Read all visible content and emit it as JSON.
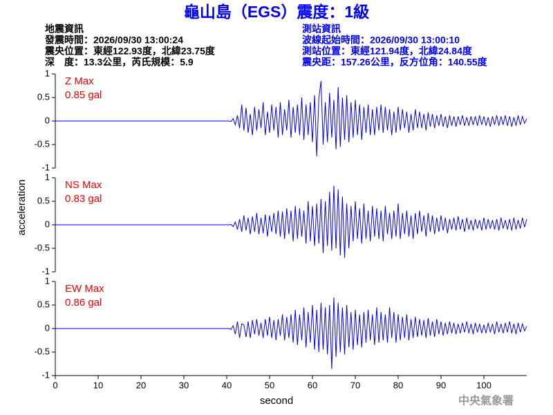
{
  "title": "龜山島（EGS）震度：1級",
  "event_info": {
    "heading": "地震資訊",
    "lines": [
      "發震時間：2026/09/30 13:00:24",
      "震央位置：東經122.93度，北緯23.75度",
      "深　度：13.3公里，芮氏規模：5.9"
    ]
  },
  "station_info": {
    "heading": "測站資訊",
    "lines": [
      "波線起始時間：2026/09/30 13:00:10",
      "測站位置：東經121.94度，北緯24.84度",
      "震央距：157.26公里，反方位角：140.55度"
    ]
  },
  "footer": "中央氣象署",
  "chart_data": {
    "type": "line",
    "xlabel": "second",
    "ylabel": "acceleration",
    "xlim": [
      0,
      110
    ],
    "xticks": [
      0,
      10,
      20,
      30,
      40,
      50,
      60,
      70,
      80,
      90,
      100
    ],
    "ylim": [
      -1,
      1
    ],
    "yticks": [
      -1,
      -0.5,
      0,
      0.5,
      1
    ],
    "annotation_color": "#ee0000",
    "x": [
      0,
      40,
      40.5,
      41,
      41.5,
      42,
      42.5,
      43,
      43.5,
      44,
      44.5,
      45,
      45.5,
      46,
      46.5,
      47,
      47.5,
      48,
      48.5,
      49,
      49.5,
      50,
      50.5,
      51,
      51.5,
      52,
      52.5,
      53,
      53.5,
      54,
      54.5,
      55,
      55.5,
      56,
      56.5,
      57,
      57.5,
      58,
      58.5,
      59,
      59.5,
      60,
      60.5,
      61,
      61.5,
      62,
      62.5,
      63,
      63.5,
      64,
      64.5,
      65,
      65.5,
      66,
      66.5,
      67,
      67.5,
      68,
      68.5,
      69,
      69.5,
      70,
      70.5,
      71,
      71.5,
      72,
      72.5,
      73,
      73.5,
      74,
      74.5,
      75,
      75.5,
      76,
      76.5,
      77,
      77.5,
      78,
      78.5,
      79,
      79.5,
      80,
      80.5,
      81,
      81.5,
      82,
      82.5,
      83,
      83.5,
      84,
      84.5,
      85,
      85.5,
      86,
      86.5,
      87,
      87.5,
      88,
      88.5,
      89,
      89.5,
      90,
      90.5,
      91,
      91.5,
      92,
      92.5,
      93,
      93.5,
      94,
      94.5,
      95,
      95.5,
      96,
      96.5,
      97,
      97.5,
      98,
      98.5,
      99,
      99.5,
      100,
      100.5,
      101,
      101.5,
      102,
      102.5,
      103,
      103.5,
      104,
      104.5,
      105,
      105.5,
      106,
      106.5,
      107,
      107.5,
      108,
      108.5,
      109,
      109.5,
      110
    ],
    "series": [
      {
        "name": "Z Max",
        "peak_label": "0.85 gal",
        "color": "#0000ee",
        "values": [
          0,
          0,
          0,
          -0.01,
          0.05,
          -0.08,
          0.12,
          -0.15,
          0.35,
          -0.2,
          0.28,
          -0.25,
          0.15,
          -0.3,
          0.3,
          -0.2,
          0.25,
          -0.15,
          0.4,
          -0.3,
          0.2,
          -0.25,
          0.35,
          -0.2,
          0.3,
          -0.35,
          0.4,
          -0.3,
          0.25,
          -0.2,
          0.45,
          -0.35,
          0.3,
          -0.25,
          0.35,
          -0.3,
          0.5,
          -0.4,
          0.35,
          -0.3,
          0.4,
          -0.45,
          0.55,
          -0.75,
          0.5,
          0.85,
          -0.5,
          0.4,
          -0.45,
          0.6,
          -0.35,
          0.45,
          -0.6,
          0.72,
          -0.55,
          0.5,
          -0.4,
          0.55,
          -0.45,
          0.4,
          -0.35,
          0.45,
          -0.3,
          0.35,
          -0.4,
          0.3,
          -0.25,
          0.35,
          -0.3,
          0.25,
          -0.3,
          0.3,
          -0.2,
          0.35,
          -0.25,
          0.3,
          -0.2,
          0.25,
          -0.3,
          0.2,
          -0.25,
          0.3,
          -0.2,
          0.25,
          -0.15,
          0.2,
          -0.25,
          0.15,
          -0.2,
          0.25,
          -0.15,
          0.2,
          -0.15,
          0.15,
          -0.2,
          0.18,
          -0.12,
          0.15,
          -0.15,
          0.12,
          -0.1,
          0.15,
          -0.12,
          0.1,
          -0.15,
          0.12,
          -0.1,
          0.1,
          -0.12,
          0.1,
          -0.08,
          0.12,
          -0.1,
          0.08,
          -0.1,
          0.1,
          -0.08,
          0.1,
          -0.1,
          0.12,
          -0.08,
          0.1,
          -0.1,
          0.08,
          -0.12,
          0.1,
          -0.08,
          0.12,
          -0.1,
          0.1,
          -0.08,
          0.12,
          -0.1,
          0.1,
          -0.12,
          0.08,
          -0.1,
          0.12,
          -0.08,
          0.1,
          -0.05,
          0.05
        ]
      },
      {
        "name": "NS Max",
        "peak_label": "0.83 gal",
        "color": "#0000ee",
        "values": [
          0,
          0,
          0,
          0.01,
          -0.04,
          0.06,
          -0.1,
          0.12,
          -0.15,
          0.2,
          -0.12,
          0.15,
          -0.2,
          0.18,
          -0.15,
          0.25,
          -0.2,
          0.15,
          -0.18,
          0.22,
          -0.25,
          0.2,
          -0.15,
          0.25,
          -0.2,
          0.3,
          -0.25,
          0.28,
          -0.3,
          0.35,
          -0.2,
          0.3,
          -0.35,
          0.4,
          -0.3,
          0.35,
          -0.25,
          0.3,
          -0.4,
          0.5,
          -0.35,
          0.4,
          -0.45,
          0.45,
          -0.4,
          0.55,
          -0.6,
          0.5,
          -0.45,
          0.7,
          -0.55,
          0.83,
          -0.5,
          0.75,
          -0.65,
          0.6,
          -0.7,
          0.45,
          -0.5,
          0.4,
          -0.35,
          0.5,
          -0.3,
          0.35,
          -0.4,
          0.45,
          -0.3,
          0.3,
          -0.35,
          0.4,
          -0.25,
          0.35,
          -0.3,
          0.3,
          -0.35,
          0.4,
          -0.2,
          0.25,
          -0.3,
          0.3,
          -0.25,
          0.45,
          -0.3,
          0.25,
          -0.2,
          0.3,
          -0.25,
          0.2,
          -0.3,
          0.25,
          -0.2,
          0.3,
          -0.15,
          0.2,
          -0.25,
          0.25,
          -0.15,
          0.2,
          -0.2,
          0.15,
          -0.15,
          0.2,
          -0.12,
          0.15,
          -0.18,
          0.12,
          -0.1,
          0.15,
          -0.12,
          0.18,
          -0.1,
          0.12,
          -0.15,
          0.15,
          -0.1,
          0.1,
          -0.12,
          0.12,
          -0.08,
          0.1,
          -0.12,
          0.15,
          -0.1,
          0.12,
          -0.08,
          0.1,
          -0.1,
          0.12,
          -0.12,
          0.15,
          -0.08,
          0.1,
          -0.1,
          0.12,
          -0.12,
          0.15,
          -0.1,
          0.1,
          -0.08,
          0.15,
          -0.05,
          0.12
        ]
      },
      {
        "name": "EW Max",
        "peak_label": "0.86 gal",
        "color": "#0000ee",
        "values": [
          0,
          0,
          0,
          -0.02,
          0.06,
          -0.12,
          0.15,
          -0.2,
          0.1,
          0.08,
          -0.18,
          0.15,
          -0.2,
          0.18,
          -0.12,
          0.2,
          -0.15,
          0.12,
          -0.2,
          0.2,
          -0.15,
          0.25,
          -0.2,
          0.18,
          -0.25,
          0.2,
          -0.15,
          0.3,
          -0.25,
          0.25,
          -0.2,
          0.3,
          -0.3,
          0.4,
          -0.35,
          0.3,
          -0.25,
          0.45,
          -0.4,
          0.35,
          -0.3,
          0.5,
          -0.45,
          0.4,
          -0.5,
          0.55,
          -0.45,
          0.45,
          -0.55,
          0.5,
          -0.86,
          0.66,
          -0.6,
          0.55,
          -0.5,
          0.45,
          -0.55,
          0.5,
          -0.4,
          0.35,
          -0.45,
          0.4,
          -0.35,
          0.3,
          -0.4,
          0.35,
          -0.3,
          0.4,
          -0.25,
          0.3,
          -0.35,
          0.45,
          -0.3,
          0.35,
          -0.25,
          0.3,
          -0.3,
          0.45,
          -0.2,
          0.35,
          -0.3,
          0.3,
          -0.25,
          0.25,
          -0.2,
          0.3,
          -0.25,
          0.2,
          -0.2,
          0.25,
          -0.18,
          0.2,
          -0.15,
          0.18,
          -0.2,
          0.22,
          -0.15,
          0.15,
          -0.18,
          0.2,
          -0.12,
          0.15,
          -0.15,
          0.12,
          -0.12,
          0.15,
          -0.1,
          0.12,
          -0.12,
          0.1,
          -0.1,
          0.12,
          -0.08,
          0.15,
          -0.1,
          0.1,
          -0.12,
          0.12,
          -0.08,
          0.1,
          -0.1,
          0.08,
          -0.1,
          0.12,
          -0.08,
          0.1,
          -0.12,
          0.15,
          -0.08,
          0.1,
          -0.1,
          0.12,
          -0.08,
          0.15,
          -0.1,
          0.1,
          -0.12,
          0.12,
          -0.08,
          0.1,
          -0.05,
          0.05
        ]
      }
    ]
  }
}
